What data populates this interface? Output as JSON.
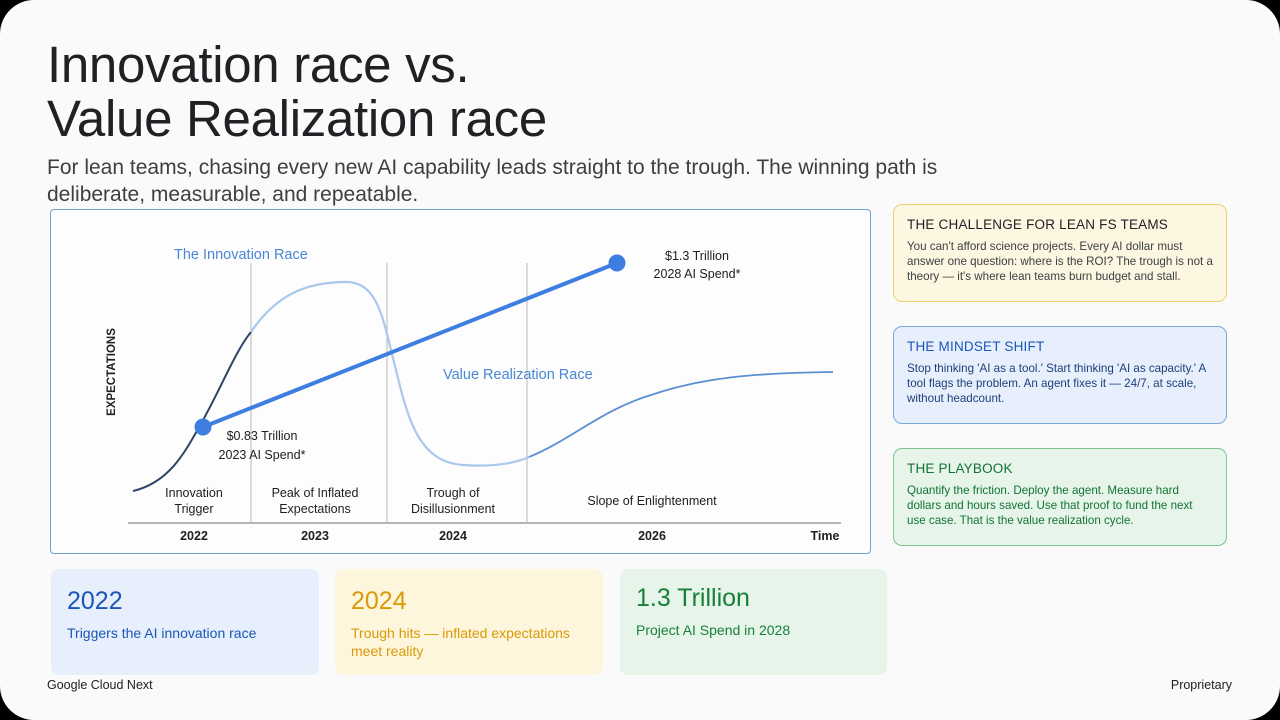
{
  "slide": {
    "title_line1": "Innovation race vs.",
    "title_line2": "Value Realization race",
    "subtitle": "For lean teams, chasing every new AI capability leads straight to the trough. The winning path is deliberate, measurable, and repeatable.",
    "footer_left": "Google Cloud Next",
    "footer_right": "Proprietary"
  },
  "chart_data": {
    "type": "line",
    "ylabel": "EXPECTATIONS",
    "xlabel": "Time",
    "x_ticks": [
      "2022",
      "2023",
      "2024",
      "2026"
    ],
    "phases": [
      "Innovation Trigger",
      "Peak of Inflated Expectations",
      "Trough of Disillusionment",
      "Slope of Enlightenment"
    ],
    "series": [
      {
        "name": "The Innovation Race",
        "color": "#4a86d4"
      },
      {
        "name": "Value Realization Race",
        "color": "#4a86d4"
      }
    ],
    "points": [
      {
        "year": 2023,
        "value_trillion": 0.83,
        "label_line1": "$0.83 Trillion",
        "label_line2": "2023 AI Spend*"
      },
      {
        "year": 2028,
        "value_trillion": 1.3,
        "label_line1": "$1.3 Trillion",
        "label_line2": "2028 AI Spend*"
      }
    ],
    "grid": false
  },
  "cards": [
    {
      "title": "THE CHALLENGE FOR LEAN FS TEAMS",
      "body": "You can't afford science projects. Every AI dollar must answer one question: where is the ROI? The trough is not a theory — it's where lean teams burn budget and stall."
    },
    {
      "title": "THE MINDSET SHIFT",
      "body": "Stop thinking 'AI as a tool.' Start thinking 'AI as capacity.' A tool flags the problem. An agent fixes it — 24/7, at scale, without headcount."
    },
    {
      "title": "THE PLAYBOOK",
      "body": "Quantify the friction. Deploy the agent. Measure hard dollars and hours saved. Use that proof to fund the next use case. That is the value realization cycle."
    }
  ],
  "stats": [
    {
      "big": "2022",
      "small": "Triggers the AI innovation race"
    },
    {
      "big": "2024",
      "small": "Trough hits — inflated expectations meet reality"
    },
    {
      "big": "1.3 Trillion",
      "small": "Project AI Spend in 2028"
    }
  ]
}
